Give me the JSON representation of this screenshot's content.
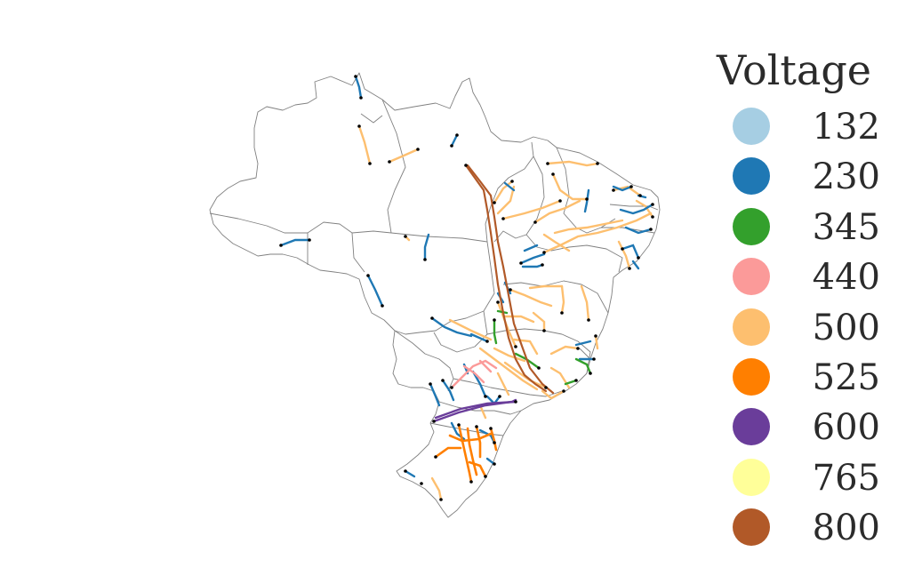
{
  "legend": {
    "title": "Voltage",
    "items": [
      {
        "label": "132",
        "color": "#a6cee3"
      },
      {
        "label": "230",
        "color": "#1f78b4"
      },
      {
        "label": "345",
        "color": "#33a02c"
      },
      {
        "label": "440",
        "color": "#fb9a99"
      },
      {
        "label": "500",
        "color": "#fdbf6f"
      },
      {
        "label": "525",
        "color": "#ff7f00"
      },
      {
        "label": "600",
        "color": "#6a3d9a"
      },
      {
        "label": "765",
        "color": "#ffff99"
      },
      {
        "label": "800",
        "color": "#b15928"
      }
    ]
  },
  "map": {
    "region": "Brazil",
    "border_color": "#808080",
    "bus_color": "#000000"
  }
}
